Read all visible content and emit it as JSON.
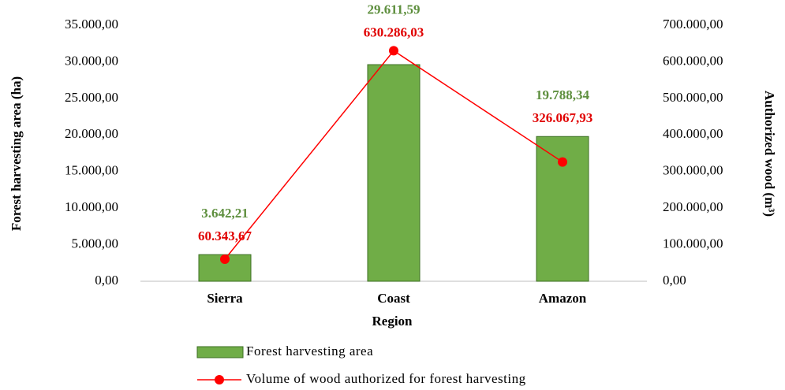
{
  "chart_data": {
    "type": "combo",
    "x_label": "Region",
    "y_label": "Forest harvesting area (ha)",
    "y2_label": "Authorized wood (m³)",
    "categories": [
      "Sierra",
      "Coast",
      "Amazon"
    ],
    "series": [
      {
        "name": "Forest harvesting area",
        "type": "bar",
        "color": "#70ad47",
        "values": [
          3642.21,
          29611.59,
          19788.34
        ],
        "value_labels": [
          "3.642,21",
          "29.611,59",
          "19.788,34"
        ]
      },
      {
        "name": "Volume of wood authorized for forest harvesting",
        "type": "line",
        "axis": "y2",
        "color": "#ff0000",
        "values": [
          60343.67,
          630286.03,
          326067.93
        ],
        "value_labels": [
          "60.343,67",
          "630.286,03",
          "326.067,93"
        ]
      }
    ],
    "ylim": [
      0,
      35000
    ],
    "yticks": [
      {
        "value": 0,
        "label": "0,00"
      },
      {
        "value": 5000,
        "label": "5.000,00"
      },
      {
        "value": 10000,
        "label": "10.000,00"
      },
      {
        "value": 15000,
        "label": "15.000,00"
      },
      {
        "value": 20000,
        "label": "20.000,00"
      },
      {
        "value": 25000,
        "label": "25.000,00"
      },
      {
        "value": 30000,
        "label": "30.000,00"
      },
      {
        "value": 35000,
        "label": "35.000,00"
      }
    ],
    "y2lim": [
      0,
      700000
    ],
    "y2ticks": [
      {
        "value": 0,
        "label": "0,00"
      },
      {
        "value": 100000,
        "label": "100.000,00"
      },
      {
        "value": 200000,
        "label": "200.000,00"
      },
      {
        "value": 300000,
        "label": "300.000,00"
      },
      {
        "value": 400000,
        "label": "400.000,00"
      },
      {
        "value": 500000,
        "label": "500.000,00"
      },
      {
        "value": 600000,
        "label": "600.000,00"
      },
      {
        "value": 700000,
        "label": "700.000,00"
      }
    ],
    "grid": false,
    "legend": "bottom"
  }
}
